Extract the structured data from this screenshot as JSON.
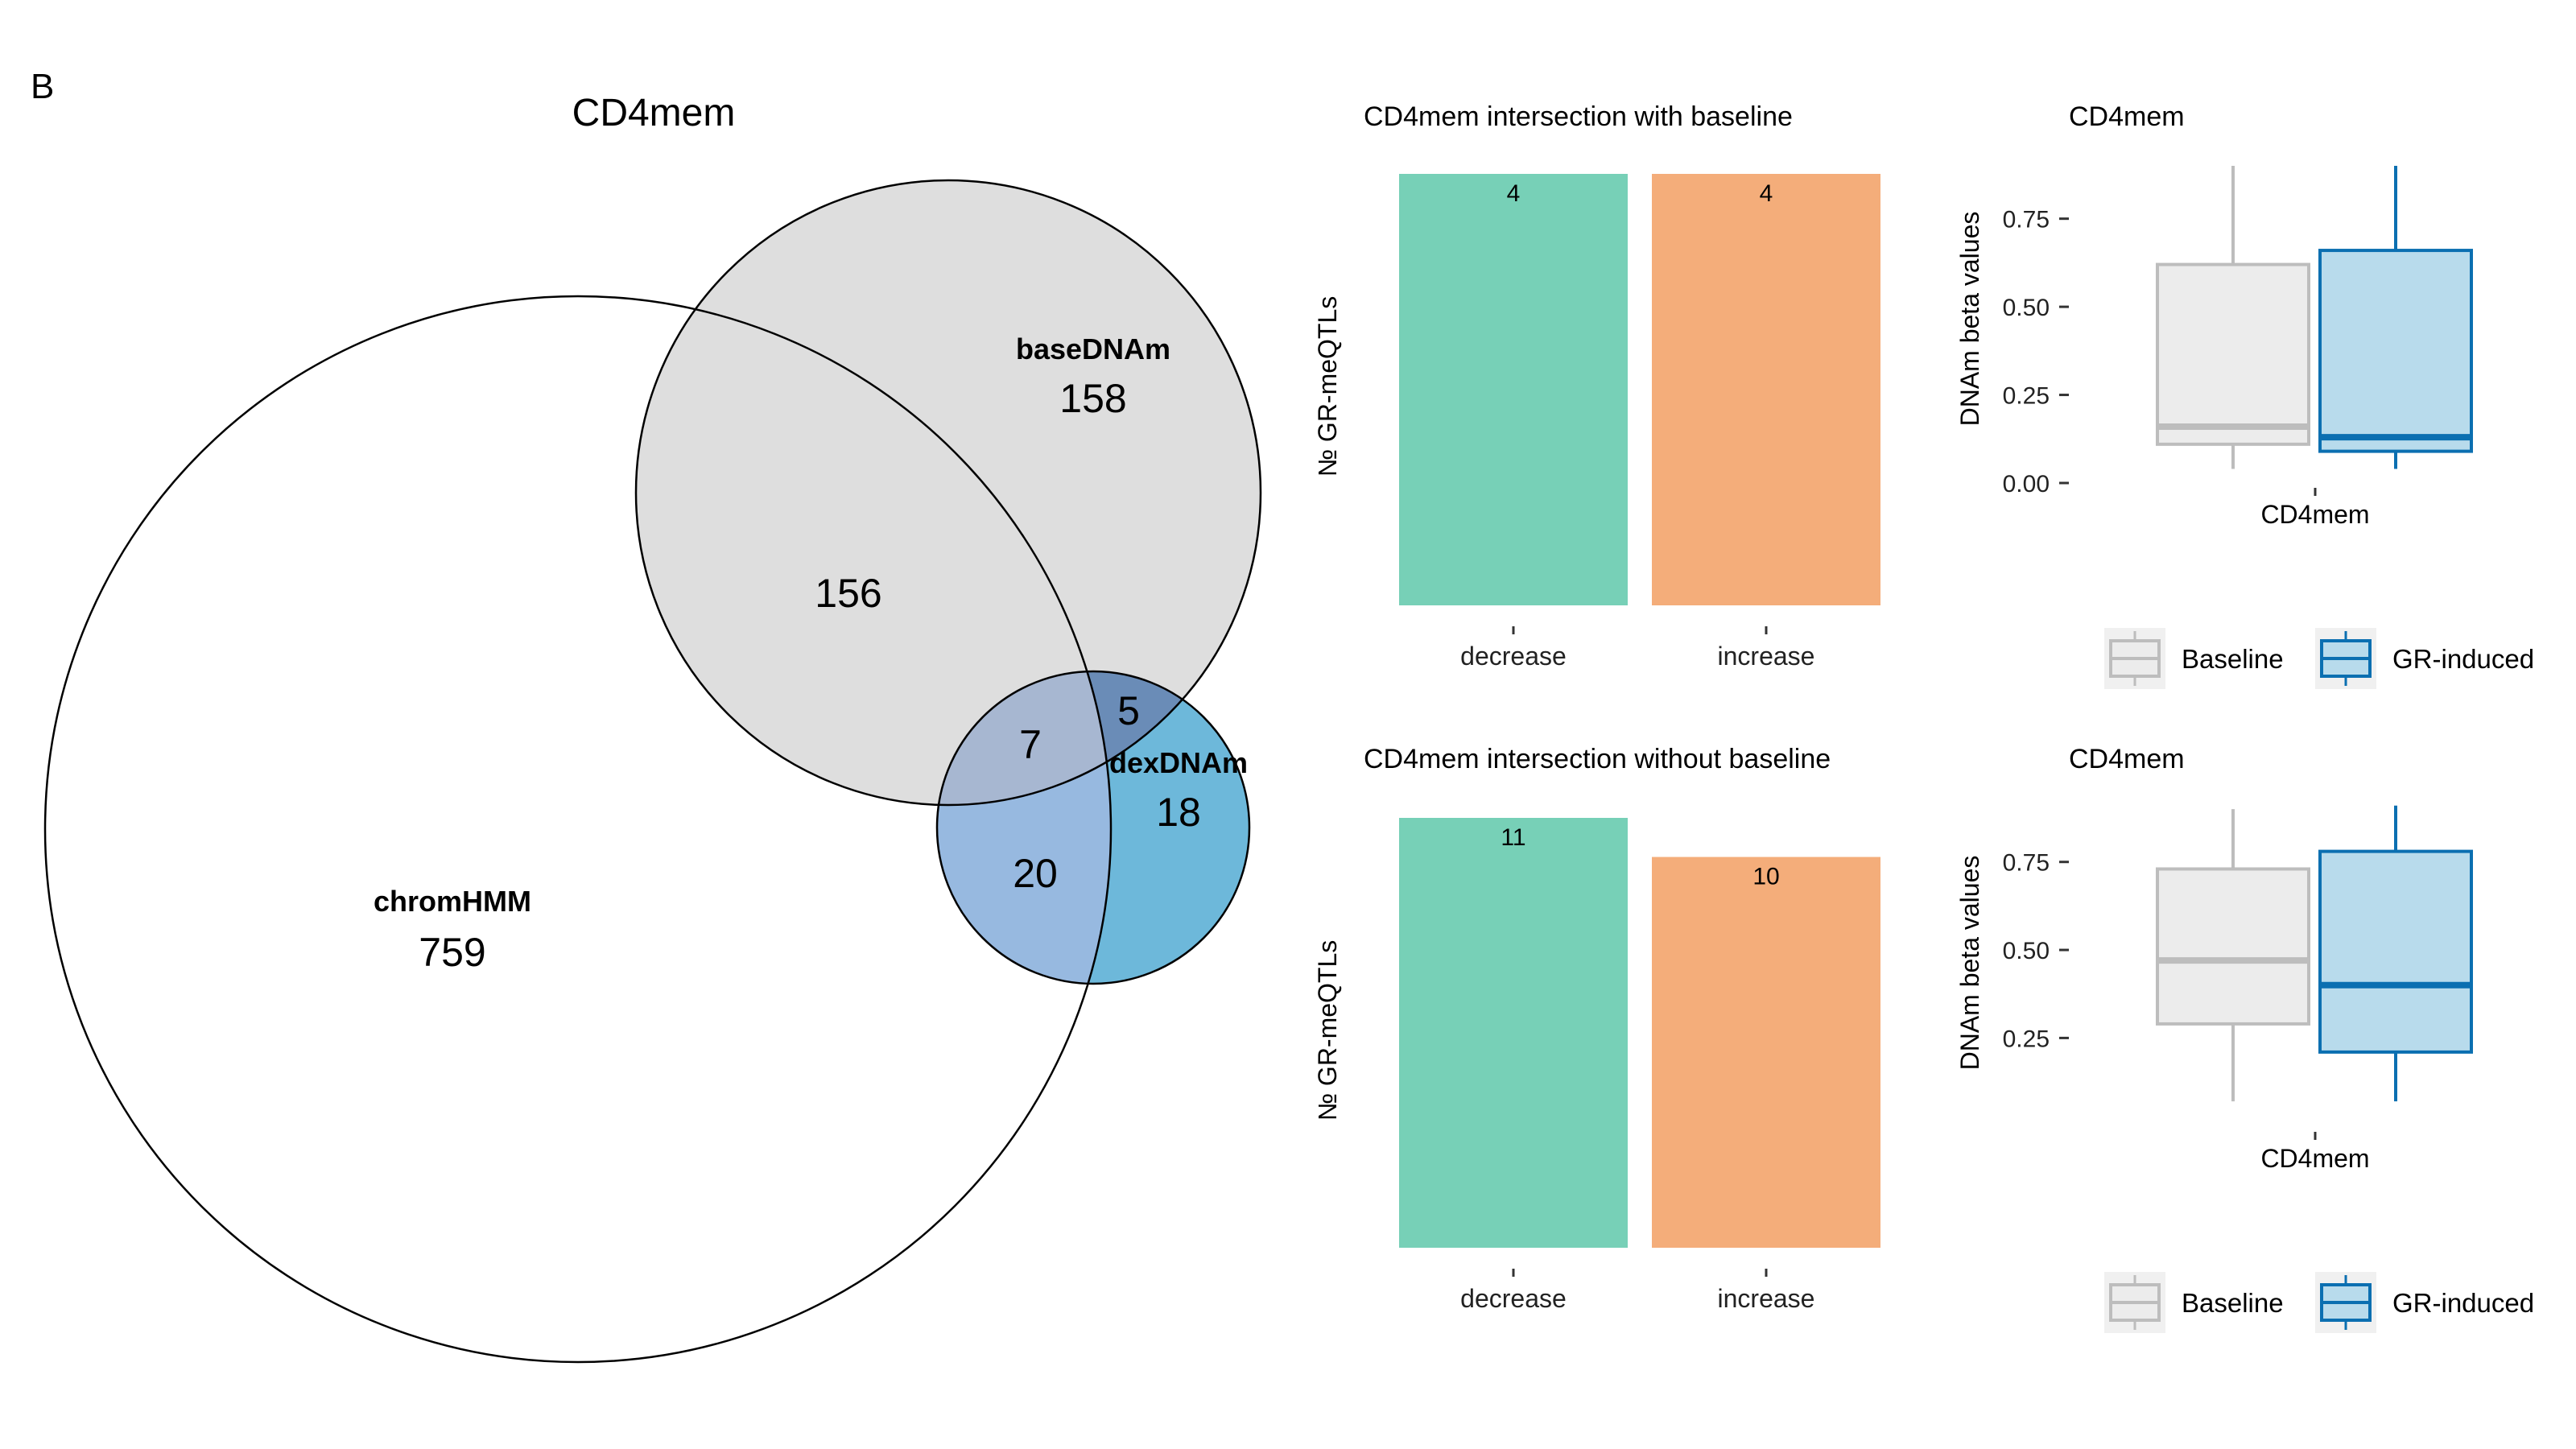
{
  "panel_label": "B",
  "chart_data": [
    {
      "type": "venn",
      "title": "CD4mem",
      "sets": [
        {
          "name": "chromHMM",
          "only": 759,
          "color": "#ffffff"
        },
        {
          "name": "baseDNAm",
          "only": 158,
          "color": "#dedede"
        },
        {
          "name": "dexDNAm",
          "only": 18,
          "color": "#6db8da"
        }
      ],
      "intersections": [
        {
          "sets": [
            "chromHMM",
            "baseDNAm"
          ],
          "value": 156
        },
        {
          "sets": [
            "chromHMM",
            "baseDNAm",
            "dexDNAm"
          ],
          "value": 7
        },
        {
          "sets": [
            "baseDNAm",
            "dexDNAm"
          ],
          "value": 5
        },
        {
          "sets": [
            "chromHMM",
            "dexDNAm"
          ],
          "value": 20
        }
      ]
    },
    {
      "type": "bar",
      "title": "CD4mem intersection with baseline",
      "ylabel": "№ GR-meQTLs",
      "categories": [
        "decrease",
        "increase"
      ],
      "values": [
        4,
        4
      ],
      "colors": [
        "#77d0b7",
        "#f4ad7a"
      ]
    },
    {
      "type": "box",
      "title": "CD4mem",
      "ylabel": "DNAm beta values",
      "xlabel": "CD4mem",
      "yticks": [
        "0.00",
        "0.25",
        "0.50",
        "0.75"
      ],
      "ylim": [
        0,
        0.9
      ],
      "series": [
        {
          "name": "Baseline",
          "min": 0.04,
          "q1": 0.11,
          "median": 0.16,
          "q3": 0.62,
          "max": 0.9,
          "fill": "#ececec",
          "stroke": "#bdbdbd"
        },
        {
          "name": "GR-induced",
          "min": 0.04,
          "q1": 0.09,
          "median": 0.13,
          "q3": 0.66,
          "max": 0.9,
          "fill": "#b8dbec",
          "stroke": "#0b6fb1"
        }
      ],
      "legend": [
        "Baseline",
        "GR-induced"
      ]
    },
    {
      "type": "bar",
      "title": "CD4mem intersection without baseline",
      "ylabel": "№ GR-meQTLs",
      "categories": [
        "decrease",
        "increase"
      ],
      "values": [
        11,
        10
      ],
      "colors": [
        "#77d0b7",
        "#f4ad7a"
      ]
    },
    {
      "type": "box",
      "title": "CD4mem",
      "ylabel": "DNAm beta values",
      "xlabel": "CD4mem",
      "yticks": [
        "0.25",
        "0.50",
        "0.75"
      ],
      "ylim": [
        0.02,
        0.93
      ],
      "series": [
        {
          "name": "Baseline",
          "min": 0.07,
          "q1": 0.29,
          "median": 0.47,
          "q3": 0.73,
          "max": 0.9,
          "fill": "#ececec",
          "stroke": "#bdbdbd"
        },
        {
          "name": "GR-induced",
          "min": 0.07,
          "q1": 0.21,
          "median": 0.4,
          "q3": 0.78,
          "max": 0.91,
          "fill": "#b8dbec",
          "stroke": "#0b6fb1"
        }
      ],
      "legend": [
        "Baseline",
        "GR-induced"
      ]
    }
  ]
}
